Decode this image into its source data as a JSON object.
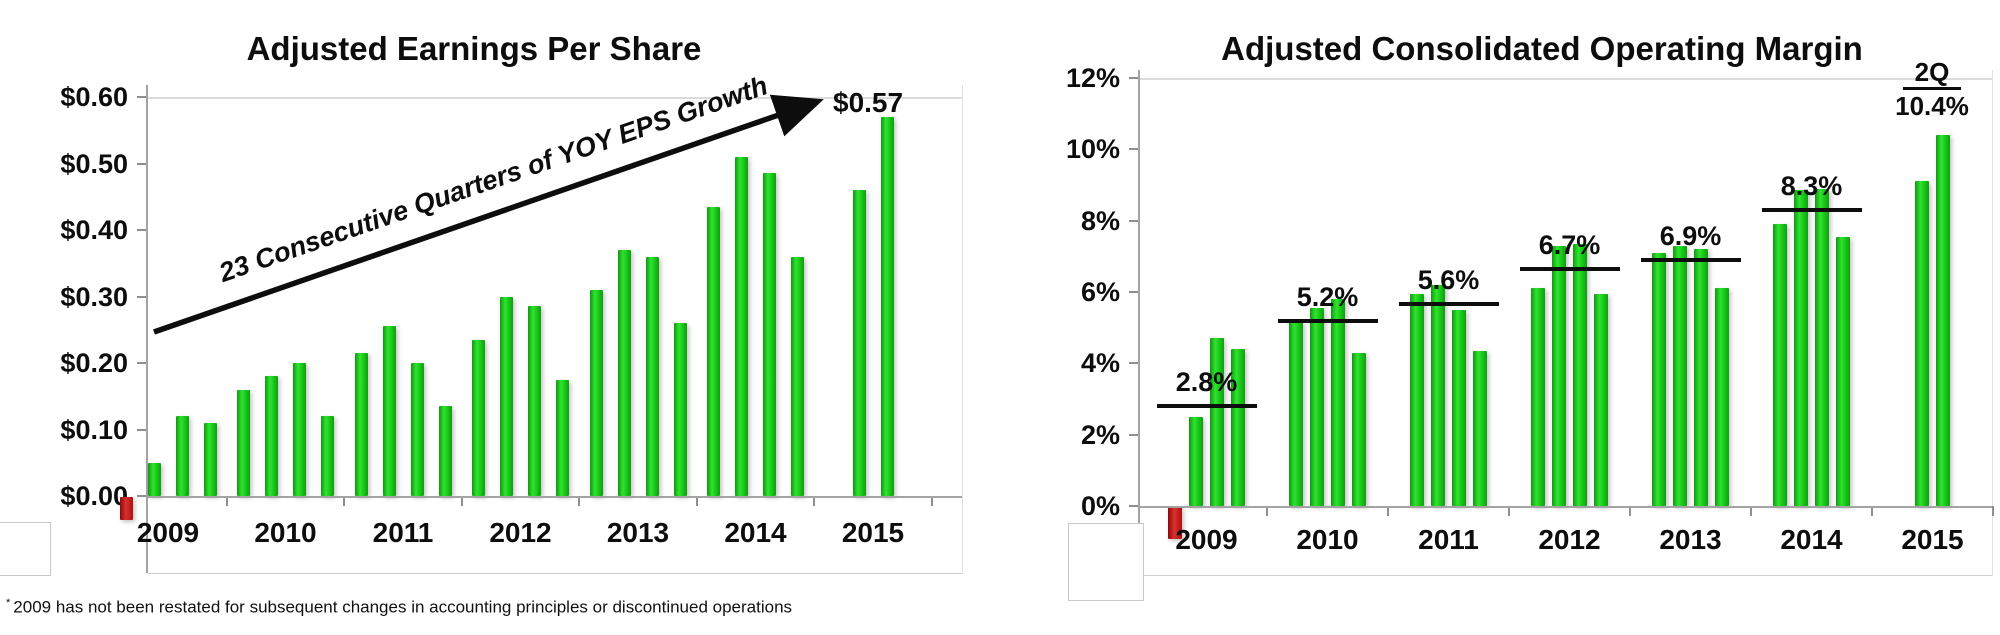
{
  "chart_data": [
    {
      "type": "bar",
      "title": "Adjusted Earnings Per Share",
      "x_categories": [
        "2009",
        "2010",
        "2011",
        "2012",
        "2013",
        "2014",
        "2015"
      ],
      "y_ticks": [
        {
          "label": "$0.60",
          "value": 0.6
        },
        {
          "label": "$0.50",
          "value": 0.5
        },
        {
          "label": "$0.40",
          "value": 0.4
        },
        {
          "label": "$0.30",
          "value": 0.3
        },
        {
          "label": "$0.20",
          "value": 0.2
        },
        {
          "label": "$0.10",
          "value": 0.1
        },
        {
          "label": "$0.00",
          "value": 0.0
        }
      ],
      "ylim": [
        -0.05,
        0.62
      ],
      "groups": [
        {
          "year": "2009",
          "values": [
            -0.035,
            0.05,
            0.12,
            0.11
          ]
        },
        {
          "year": "2010",
          "values": [
            0.16,
            0.18,
            0.2,
            0.12
          ]
        },
        {
          "year": "2011",
          "values": [
            0.215,
            0.255,
            0.2,
            0.135
          ]
        },
        {
          "year": "2012",
          "values": [
            0.235,
            0.3,
            0.285,
            0.175
          ]
        },
        {
          "year": "2013",
          "values": [
            0.31,
            0.37,
            0.36,
            0.26
          ]
        },
        {
          "year": "2014",
          "values": [
            0.435,
            0.51,
            0.485,
            0.36
          ]
        },
        {
          "year": "2015",
          "values": [
            0.46,
            0.57
          ]
        }
      ],
      "annotation": "23 Consecutive Quarters of YOY EPS Growth",
      "end_label": "$0.57",
      "footnote_marker": "*",
      "footnote": "2009 has not been restated for subsequent changes in accounting principles or discontinued operations",
      "bar_color": "#1ecb1e",
      "negative_bar_color": "#c00000",
      "grid": "top-line-only",
      "legend_position": "none"
    },
    {
      "type": "bar",
      "title": "Adjusted Consolidated Operating Margin",
      "x_categories": [
        "2009",
        "2010",
        "2011",
        "2012",
        "2013",
        "2014",
        "2015"
      ],
      "y_ticks": [
        {
          "label": "12%",
          "value": 12
        },
        {
          "label": "10%",
          "value": 10
        },
        {
          "label": "8%",
          "value": 8
        },
        {
          "label": "6%",
          "value": 6
        },
        {
          "label": "4%",
          "value": 4
        },
        {
          "label": "2%",
          "value": 2
        },
        {
          "label": "0%",
          "value": 0
        }
      ],
      "ylim": [
        -1.0,
        12.4
      ],
      "groups": [
        {
          "year": "2009",
          "values": [
            -0.9,
            2.5,
            4.7,
            4.4
          ],
          "avg": 2.8,
          "avg_label": "2.8%"
        },
        {
          "year": "2010",
          "values": [
            5.2,
            5.55,
            5.8,
            4.3
          ],
          "avg": 5.2,
          "avg_label": "5.2%"
        },
        {
          "year": "2011",
          "values": [
            5.95,
            6.2,
            5.5,
            4.35
          ],
          "avg": 5.65,
          "avg_label": "5.6%"
        },
        {
          "year": "2012",
          "values": [
            6.1,
            7.3,
            7.35,
            5.95
          ],
          "avg": 6.65,
          "avg_label": "6.7%"
        },
        {
          "year": "2013",
          "values": [
            7.1,
            7.3,
            7.2,
            6.1
          ],
          "avg": 6.9,
          "avg_label": "6.9%"
        },
        {
          "year": "2014",
          "values": [
            7.9,
            8.85,
            8.9,
            7.55
          ],
          "avg": 8.3,
          "avg_label": "8.3%"
        },
        {
          "year": "2015",
          "values": [
            9.1,
            10.4
          ],
          "final": {
            "period": "2Q",
            "value": "10.4%"
          }
        }
      ],
      "bar_color": "#1ecb1e",
      "negative_bar_color": "#c00000",
      "avg_line_color": "#0d0d0d",
      "grid": "top-line-only",
      "legend_position": "none"
    }
  ]
}
